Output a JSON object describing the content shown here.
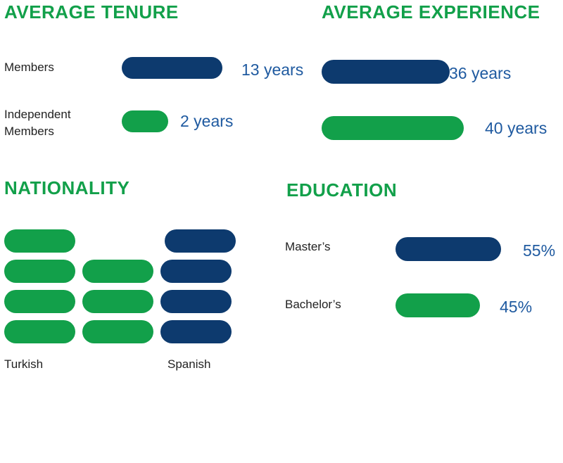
{
  "colors": {
    "navy": "#0d3a6e",
    "green": "#12a04a",
    "heading": "#12a04a",
    "value_text": "#1f5aa0",
    "label_text": "#222222"
  },
  "chart_data": [
    {
      "type": "bar",
      "title": "AVERAGE TENURE",
      "categories": [
        "Members",
        "Independent Members"
      ],
      "category_display": [
        "Members",
        "Independent\nMembers"
      ],
      "values": [
        13,
        2
      ],
      "value_labels": [
        "13 years",
        "2 years"
      ],
      "unit": "years"
    },
    {
      "type": "bar",
      "title": "AVERAGE EXPERIENCE",
      "categories": [
        "Members",
        "Independent Members"
      ],
      "values": [
        36,
        40
      ],
      "value_labels": [
        "36 years",
        "40 years"
      ],
      "unit": "years"
    },
    {
      "type": "bar",
      "title": "NATIONALITY",
      "categories": [
        "Turkish",
        "Spanish"
      ],
      "values": [
        7,
        4
      ],
      "unit": "members"
    },
    {
      "type": "bar",
      "title": "EDUCATION",
      "categories": [
        "Master’s",
        "Bachelor’s"
      ],
      "values": [
        55,
        45
      ],
      "value_labels": [
        "55%",
        "45%"
      ],
      "unit": "%"
    }
  ]
}
